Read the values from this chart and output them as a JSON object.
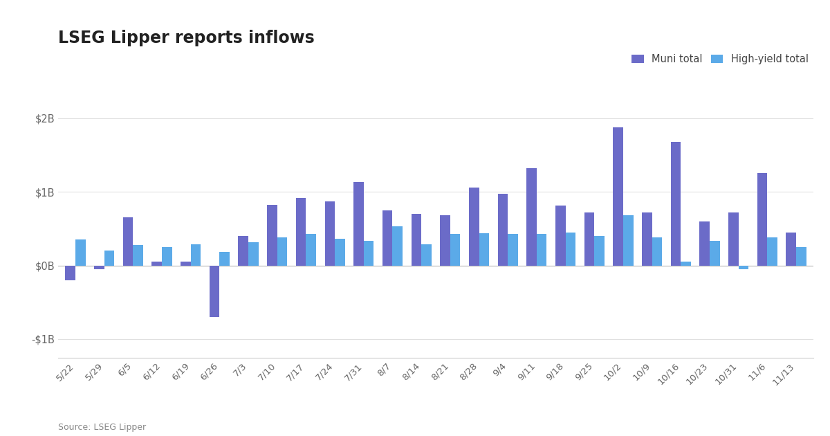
{
  "title": "LSEG Lipper reports inflows",
  "source": "Source: LSEG Lipper",
  "legend_labels": [
    "Muni total",
    "High-yield total"
  ],
  "muni_color": "#6B6BC8",
  "hy_color": "#5BAAE8",
  "background_color": "#ffffff",
  "ylim": [
    -1250000000,
    2300000000
  ],
  "yticks": [
    -1000000000,
    0,
    1000000000,
    2000000000
  ],
  "ytick_labels": [
    "-$1B",
    "$0B",
    "$1B",
    "$2B"
  ],
  "categories": [
    "5/22",
    "5/29",
    "6/5",
    "6/12",
    "6/19",
    "6/26",
    "7/3",
    "7/10",
    "7/17",
    "7/24",
    "7/31",
    "8/7",
    "8/14",
    "8/21",
    "8/28",
    "9/4",
    "9/11",
    "9/18",
    "9/25",
    "10/2",
    "10/9",
    "10/16",
    "10/23",
    "10/31",
    "11/6",
    "11/13"
  ],
  "muni_values": [
    -200000000,
    -50000000,
    650000000,
    50000000,
    50000000,
    -700000000,
    400000000,
    820000000,
    920000000,
    870000000,
    1130000000,
    750000000,
    700000000,
    680000000,
    1060000000,
    970000000,
    1320000000,
    810000000,
    720000000,
    1870000000,
    720000000,
    1680000000,
    600000000,
    720000000,
    1250000000,
    450000000
  ],
  "hy_values": [
    350000000,
    200000000,
    280000000,
    250000000,
    290000000,
    180000000,
    310000000,
    380000000,
    430000000,
    360000000,
    330000000,
    530000000,
    290000000,
    430000000,
    440000000,
    430000000,
    430000000,
    450000000,
    400000000,
    680000000,
    380000000,
    55000000,
    330000000,
    -50000000,
    380000000,
    250000000
  ]
}
